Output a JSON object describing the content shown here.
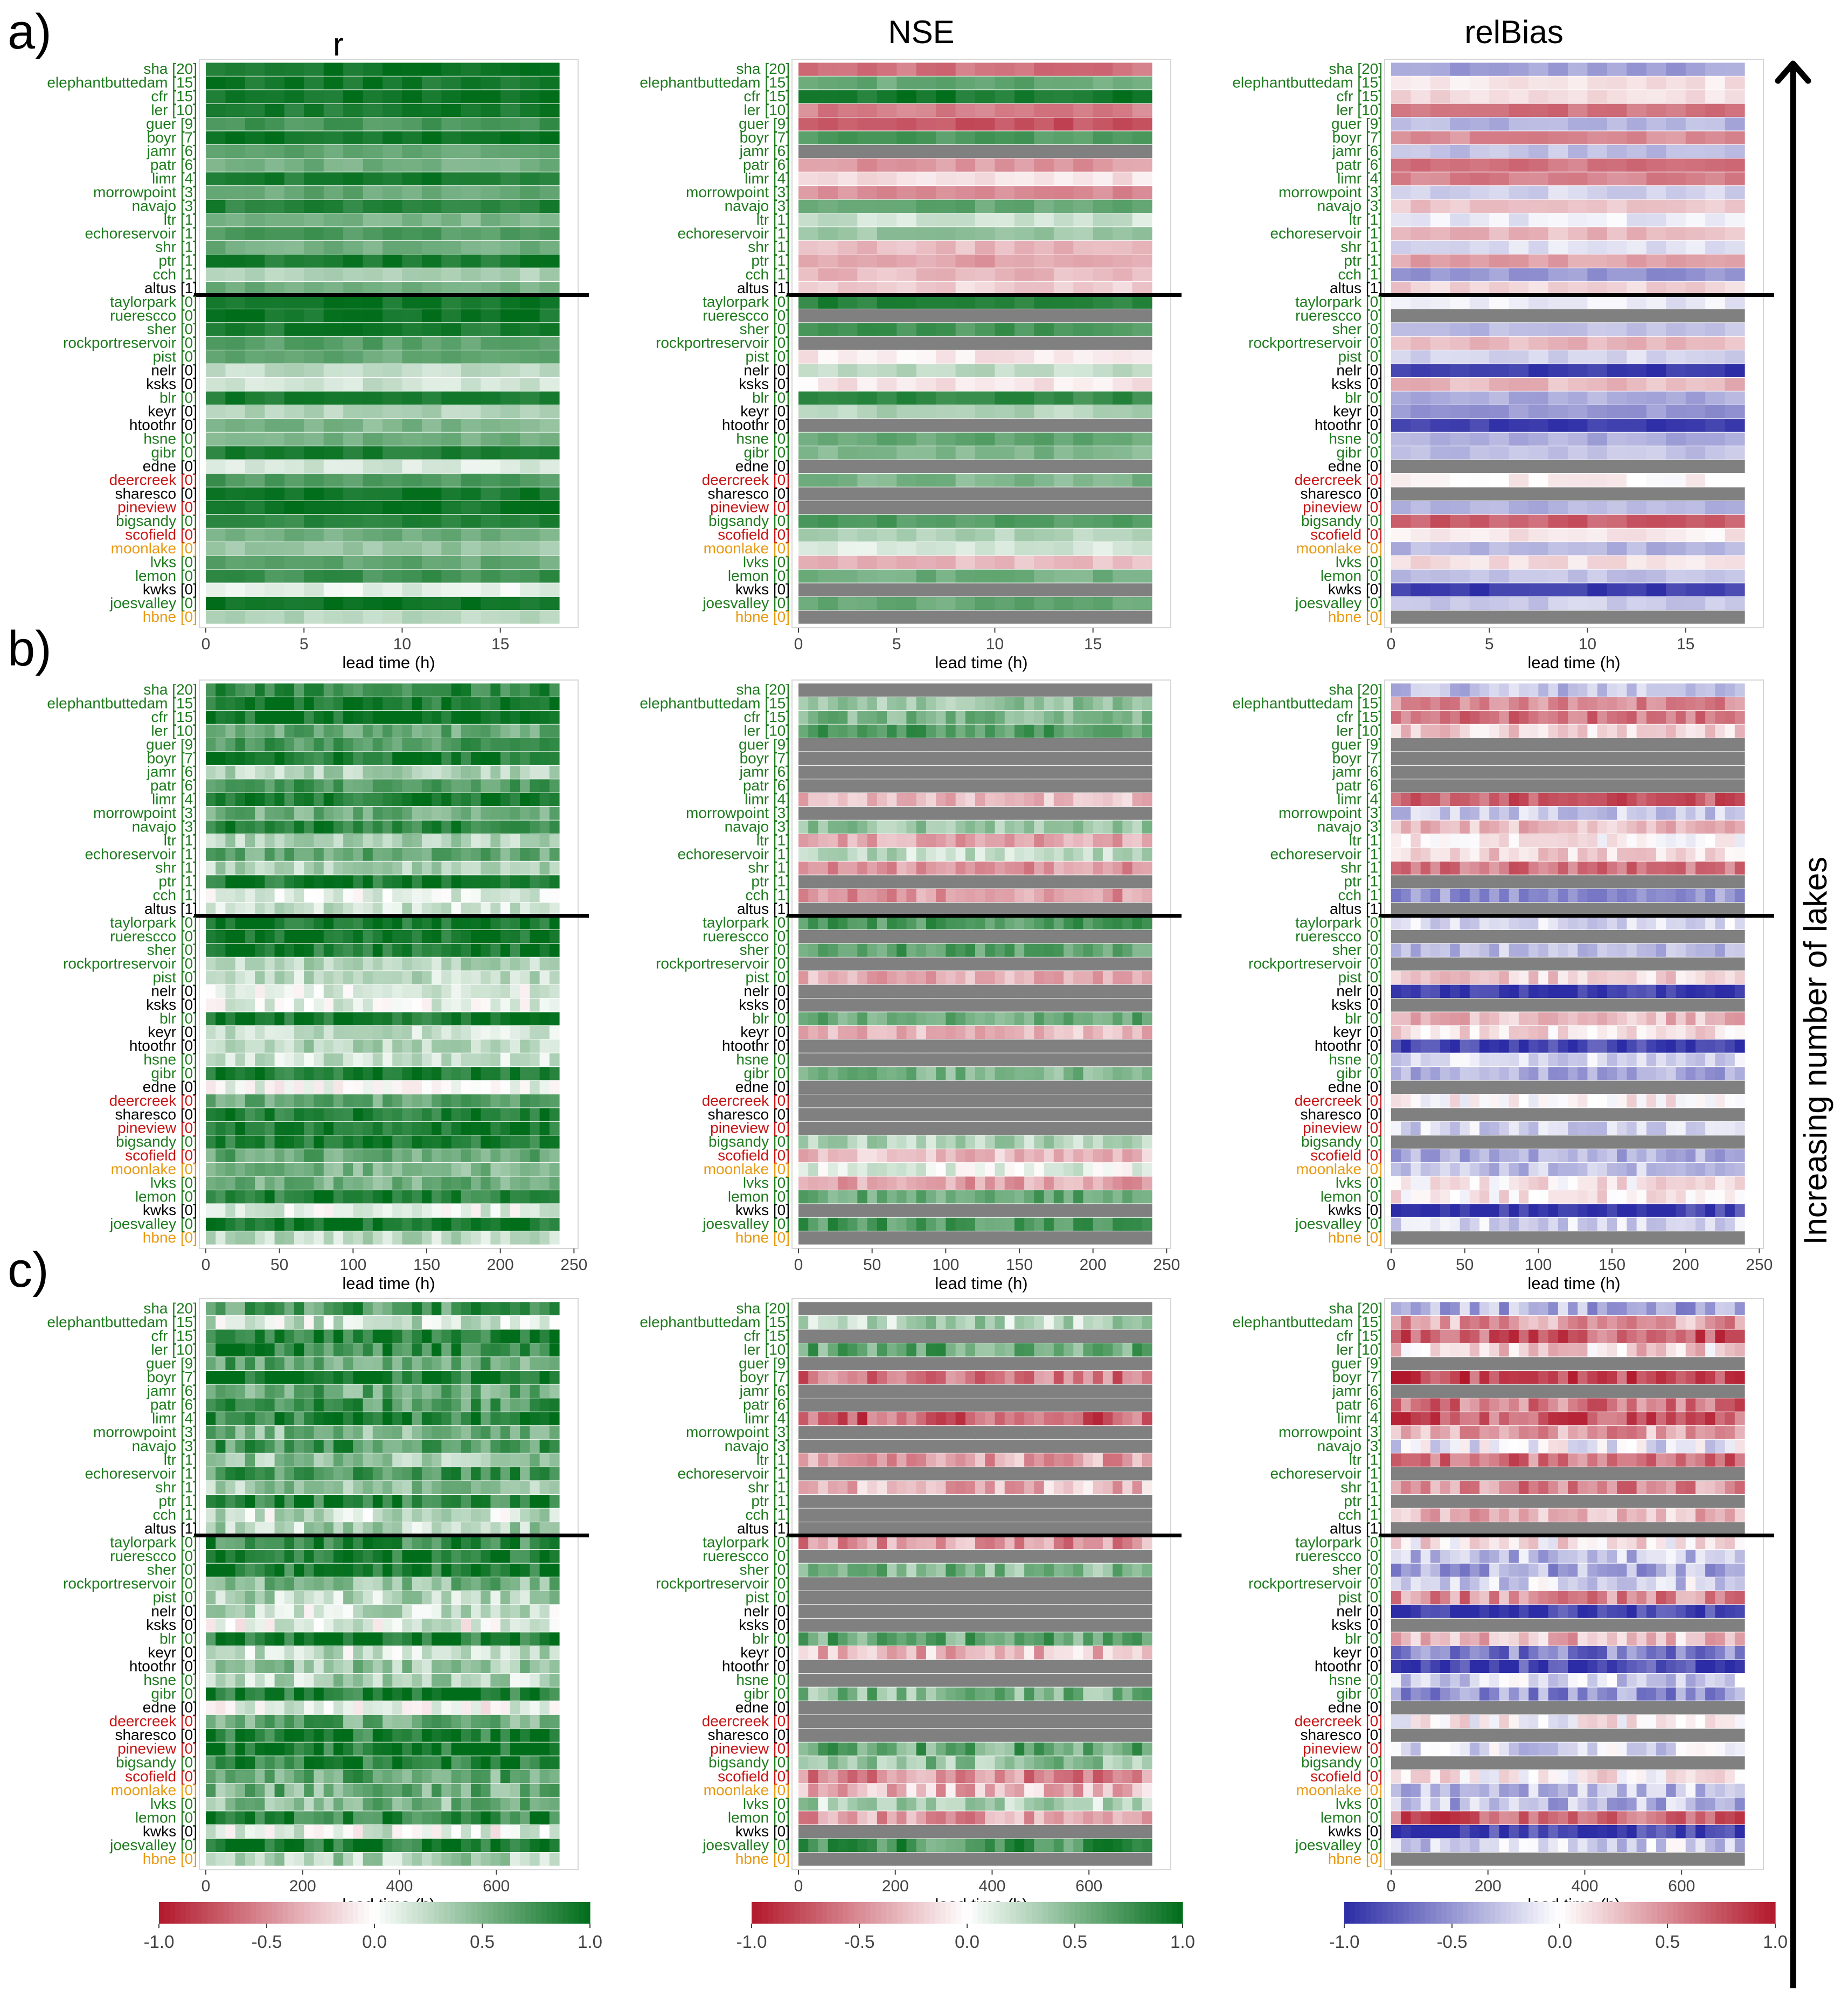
{
  "column_titles": [
    "r",
    "NSE",
    "relBias"
  ],
  "panel_letters": [
    "a)",
    "b)",
    "c)"
  ],
  "right_axis_label": "Increasing number of lakes",
  "x_axis_label": "lead time (h)",
  "colors": {
    "red": "#b2182b",
    "green": "#006d1a",
    "blue": "#2c2ca6",
    "white": "#ffffff",
    "missing": "#808080",
    "label_green": "#1e7b1e",
    "label_black": "#000000",
    "label_red": "#c81414",
    "label_orange": "#e89a14"
  },
  "stations": [
    {
      "name": "sha",
      "lakes": 20,
      "label_color": "green"
    },
    {
      "name": "elephantbuttedam",
      "lakes": 15,
      "label_color": "green"
    },
    {
      "name": "cfr",
      "lakes": 15,
      "label_color": "green"
    },
    {
      "name": "ler",
      "lakes": 10,
      "label_color": "green"
    },
    {
      "name": "guer",
      "lakes": 9,
      "label_color": "green"
    },
    {
      "name": "boyr",
      "lakes": 7,
      "label_color": "green"
    },
    {
      "name": "jamr",
      "lakes": 6,
      "label_color": "green"
    },
    {
      "name": "patr",
      "lakes": 6,
      "label_color": "green"
    },
    {
      "name": "limr",
      "lakes": 4,
      "label_color": "green"
    },
    {
      "name": "morrowpoint",
      "lakes": 3,
      "label_color": "green"
    },
    {
      "name": "navajo",
      "lakes": 3,
      "label_color": "green"
    },
    {
      "name": "ltr",
      "lakes": 1,
      "label_color": "green"
    },
    {
      "name": "echoreservoir",
      "lakes": 1,
      "label_color": "green"
    },
    {
      "name": "shr",
      "lakes": 1,
      "label_color": "green"
    },
    {
      "name": "ptr",
      "lakes": 1,
      "label_color": "green"
    },
    {
      "name": "cch",
      "lakes": 1,
      "label_color": "green"
    },
    {
      "name": "altus",
      "lakes": 1,
      "label_color": "black"
    },
    {
      "name": "taylorpark",
      "lakes": 0,
      "label_color": "green"
    },
    {
      "name": "ruerescco",
      "lakes": 0,
      "label_color": "green"
    },
    {
      "name": "sher",
      "lakes": 0,
      "label_color": "green"
    },
    {
      "name": "rockportreservoir",
      "lakes": 0,
      "label_color": "green"
    },
    {
      "name": "pist",
      "lakes": 0,
      "label_color": "green"
    },
    {
      "name": "nelr",
      "lakes": 0,
      "label_color": "black"
    },
    {
      "name": "ksks",
      "lakes": 0,
      "label_color": "black"
    },
    {
      "name": "blr",
      "lakes": 0,
      "label_color": "green"
    },
    {
      "name": "keyr",
      "lakes": 0,
      "label_color": "black"
    },
    {
      "name": "htoothr",
      "lakes": 0,
      "label_color": "black"
    },
    {
      "name": "hsne",
      "lakes": 0,
      "label_color": "green"
    },
    {
      "name": "gibr",
      "lakes": 0,
      "label_color": "green"
    },
    {
      "name": "edne",
      "lakes": 0,
      "label_color": "black"
    },
    {
      "name": "deercreek",
      "lakes": 0,
      "label_color": "red"
    },
    {
      "name": "sharesco",
      "lakes": 0,
      "label_color": "black"
    },
    {
      "name": "pineview",
      "lakes": 0,
      "label_color": "red"
    },
    {
      "name": "bigsandy",
      "lakes": 0,
      "label_color": "green"
    },
    {
      "name": "scofield",
      "lakes": 0,
      "label_color": "red"
    },
    {
      "name": "moonlake",
      "lakes": 0,
      "label_color": "orange"
    },
    {
      "name": "lvks",
      "lakes": 0,
      "label_color": "green"
    },
    {
      "name": "lemon",
      "lakes": 0,
      "label_color": "green"
    },
    {
      "name": "kwks",
      "lakes": 0,
      "label_color": "black"
    },
    {
      "name": "joesvalley",
      "lakes": 0,
      "label_color": "green"
    },
    {
      "name": "hbne",
      "lakes": 0,
      "label_color": "orange"
    }
  ],
  "colorbars": [
    {
      "metric": "r",
      "low_color": "red",
      "high_color": "green",
      "ticks": [
        "-1.0",
        "-0.5",
        "0.0",
        "0.5",
        "1.0"
      ]
    },
    {
      "metric": "NSE",
      "low_color": "red",
      "high_color": "green",
      "ticks": [
        "-1.0",
        "-0.5",
        "0.0",
        "0.5",
        "1.0"
      ]
    },
    {
      "metric": "relBias",
      "low_color": "blue",
      "high_color": "red",
      "ticks": [
        "-1.0",
        "-0.5",
        "0.0",
        "0.5",
        "1.0"
      ]
    }
  ],
  "chart_data": [
    {
      "panel": "a)",
      "type": "heatmap",
      "xlabel": "lead time (h)",
      "x_range": [
        0,
        18
      ],
      "x_ticks": [
        0,
        5,
        10,
        15
      ],
      "grid": true,
      "metrics": [
        {
          "name": "r",
          "values": [
            0.95,
            0.93,
            0.95,
            0.9,
            0.72,
            0.95,
            0.6,
            0.55,
            0.9,
            0.6,
            0.85,
            0.5,
            0.7,
            0.55,
            0.9,
            0.3,
            0.55,
            0.93,
            0.95,
            0.9,
            0.65,
            0.6,
            0.25,
            0.2,
            0.9,
            0.3,
            0.5,
            0.55,
            0.88,
            0.15,
            0.7,
            0.92,
            0.95,
            0.85,
            0.55,
            0.4,
            0.6,
            0.75,
            0.1,
            0.95,
            0.3
          ]
        },
        {
          "name": "NSE",
          "values": [
            -0.6,
            0.6,
            0.92,
            -0.55,
            -0.75,
            0.7,
            null,
            -0.45,
            -0.15,
            -0.5,
            0.6,
            0.2,
            0.4,
            -0.3,
            -0.4,
            -0.3,
            -0.2,
            0.85,
            null,
            0.72,
            null,
            -0.1,
            0.25,
            -0.1,
            0.8,
            0.3,
            null,
            0.6,
            0.5,
            null,
            0.5,
            null,
            null,
            0.7,
            0.3,
            0.15,
            -0.3,
            0.55,
            null,
            0.6,
            null
          ]
        },
        {
          "name": "relBias",
          "values": [
            -0.45,
            0.1,
            0.15,
            0.6,
            -0.35,
            0.5,
            -0.3,
            0.6,
            0.55,
            -0.2,
            0.25,
            -0.1,
            0.3,
            -0.15,
            0.4,
            -0.5,
            0.2,
            -0.1,
            null,
            -0.3,
            0.3,
            -0.2,
            -0.95,
            0.3,
            -0.4,
            -0.5,
            -0.9,
            -0.4,
            -0.3,
            null,
            0.05,
            null,
            -0.35,
            0.7,
            0.1,
            -0.35,
            0.15,
            -0.3,
            -0.92,
            -0.25,
            null
          ]
        }
      ]
    },
    {
      "panel": "b)",
      "type": "heatmap",
      "xlabel": "lead time (h)",
      "x_range": [
        0,
        240
      ],
      "x_ticks": [
        0,
        50,
        100,
        150,
        200,
        250
      ],
      "grid": true,
      "metrics": [
        {
          "name": "r",
          "values": [
            0.8,
            0.9,
            0.93,
            0.6,
            0.7,
            0.9,
            0.3,
            0.7,
            0.9,
            0.55,
            0.85,
            0.3,
            0.6,
            0.3,
            0.9,
            0.1,
            0.2,
            0.93,
            0.92,
            0.9,
            0.3,
            0.25,
            0.1,
            0.1,
            0.92,
            0.2,
            0.3,
            0.2,
            0.9,
            0.05,
            0.6,
            0.9,
            0.92,
            0.9,
            0.6,
            0.5,
            0.55,
            0.85,
            0.1,
            0.95,
            0.25
          ]
        },
        {
          "name": "NSE",
          "values": [
            null,
            0.4,
            0.5,
            0.7,
            null,
            null,
            null,
            null,
            -0.3,
            null,
            0.4,
            -0.4,
            0.25,
            -0.45,
            null,
            -0.45,
            null,
            0.7,
            null,
            0.65,
            null,
            -0.35,
            null,
            null,
            0.6,
            -0.3,
            null,
            null,
            0.5,
            null,
            null,
            null,
            null,
            0.3,
            -0.3,
            0.1,
            -0.4,
            0.6,
            null,
            0.7,
            null
          ]
        },
        {
          "name": "relBias",
          "values": [
            -0.3,
            0.5,
            0.6,
            0.2,
            null,
            null,
            null,
            null,
            0.7,
            -0.25,
            0.3,
            0.05,
            0.2,
            0.6,
            null,
            -0.5,
            null,
            -0.15,
            null,
            -0.3,
            null,
            0.2,
            -0.95,
            null,
            0.3,
            0.15,
            -0.9,
            -0.2,
            -0.4,
            null,
            0.05,
            null,
            -0.2,
            null,
            -0.4,
            -0.3,
            0.1,
            0.1,
            -0.92,
            -0.2,
            null
          ]
        }
      ]
    },
    {
      "panel": "c)",
      "type": "heatmap",
      "xlabel": "lead time (h)",
      "x_range": [
        0,
        730
      ],
      "x_ticks": [
        0,
        200,
        400,
        600
      ],
      "grid": true,
      "metrics": [
        {
          "name": "r",
          "values": [
            0.7,
            0.2,
            0.93,
            0.8,
            0.6,
            0.9,
            0.6,
            0.7,
            0.85,
            0.5,
            0.7,
            0.4,
            0.7,
            0.4,
            0.85,
            0.2,
            0.3,
            0.8,
            0.92,
            0.9,
            0.5,
            0.3,
            0.2,
            0.1,
            0.92,
            0.2,
            0.4,
            0.3,
            0.9,
            0.05,
            0.6,
            0.9,
            0.93,
            0.9,
            0.6,
            0.55,
            0.5,
            0.85,
            0.1,
            0.95,
            0.3
          ]
        },
        {
          "name": "NSE",
          "values": [
            null,
            0.3,
            null,
            0.6,
            null,
            -0.6,
            null,
            null,
            -0.7,
            null,
            null,
            -0.4,
            null,
            -0.3,
            null,
            null,
            null,
            -0.45,
            null,
            0.5,
            null,
            null,
            null,
            null,
            0.6,
            -0.3,
            null,
            null,
            0.5,
            null,
            null,
            null,
            0.6,
            0.4,
            -0.5,
            -0.3,
            0.3,
            -0.4,
            null,
            0.7,
            null
          ]
        },
        {
          "name": "relBias",
          "values": [
            -0.4,
            0.4,
            0.7,
            0.2,
            null,
            0.8,
            null,
            0.6,
            0.7,
            0.4,
            -0.1,
            0.6,
            null,
            0.5,
            null,
            0.3,
            null,
            0.1,
            -0.3,
            -0.4,
            -0.2,
            0.5,
            -0.95,
            null,
            0.3,
            -0.6,
            -0.9,
            -0.2,
            -0.5,
            null,
            0.05,
            null,
            -0.2,
            null,
            0.1,
            -0.3,
            -0.35,
            0.7,
            -0.92,
            -0.2,
            null
          ]
        }
      ]
    }
  ]
}
